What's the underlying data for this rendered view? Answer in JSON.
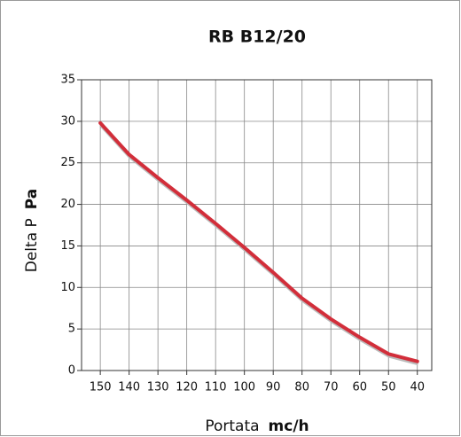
{
  "chart_data": {
    "type": "line",
    "title": "RB B12/20",
    "x_label": "Portata",
    "x_unit": "mc/h",
    "y_label": "Delta P",
    "y_unit": "Pa",
    "x": [
      150,
      140,
      130,
      120,
      110,
      100,
      90,
      80,
      70,
      60,
      50,
      40
    ],
    "series": [
      {
        "name": "RB B12/20",
        "color": "#d22e3a",
        "values": [
          29.8,
          26,
          23.2,
          20.5,
          17.7,
          14.8,
          11.8,
          8.7,
          6.2,
          4,
          2,
          1.1
        ]
      }
    ],
    "xlim": [
      156.5,
      35
    ],
    "xticks": [
      150,
      140,
      130,
      120,
      110,
      100,
      90,
      80,
      70,
      60,
      50,
      40
    ],
    "ylim": [
      0,
      35
    ],
    "yticks": [
      0,
      5,
      10,
      15,
      20,
      25,
      30,
      35
    ],
    "grid": true
  }
}
